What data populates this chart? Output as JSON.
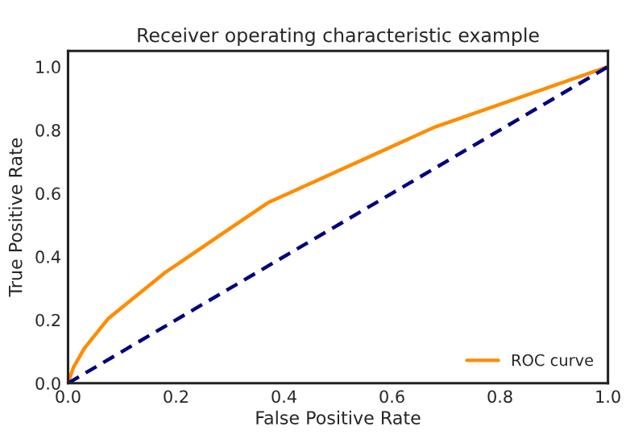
{
  "chart_data": {
    "type": "line",
    "title": "Receiver operating characteristic example",
    "xlabel": "False Positive Rate",
    "ylabel": "True Positive Rate",
    "series": [
      {
        "name": "ROC curve",
        "color": "#ff8c00",
        "x": [
          0,
          0.01,
          0.03,
          0.075,
          0.18,
          0.37,
          0.68,
          1
        ],
        "values": [
          0,
          0.05,
          0.11,
          0.205,
          0.35,
          0.57,
          0.81,
          1
        ],
        "line_style": "solid"
      },
      {
        "color": "#000080",
        "x": [
          0,
          1
        ],
        "values": [
          0,
          1
        ],
        "line_style": "dashed"
      }
    ],
    "xlim": [
      0,
      1
    ],
    "ylim": [
      0,
      1.05
    ],
    "xticks": [
      {
        "value": 0,
        "label": "0.0"
      },
      0.2,
      0.4,
      0.6,
      0.8,
      {
        "value": 1,
        "label": "1.0"
      }
    ],
    "yticks": [
      {
        "value": 0,
        "label": "0.0"
      },
      0.2,
      0.4,
      0.6,
      0.8,
      {
        "value": 1,
        "label": "1.0"
      }
    ],
    "grid": false,
    "legend": "bottom right"
  }
}
